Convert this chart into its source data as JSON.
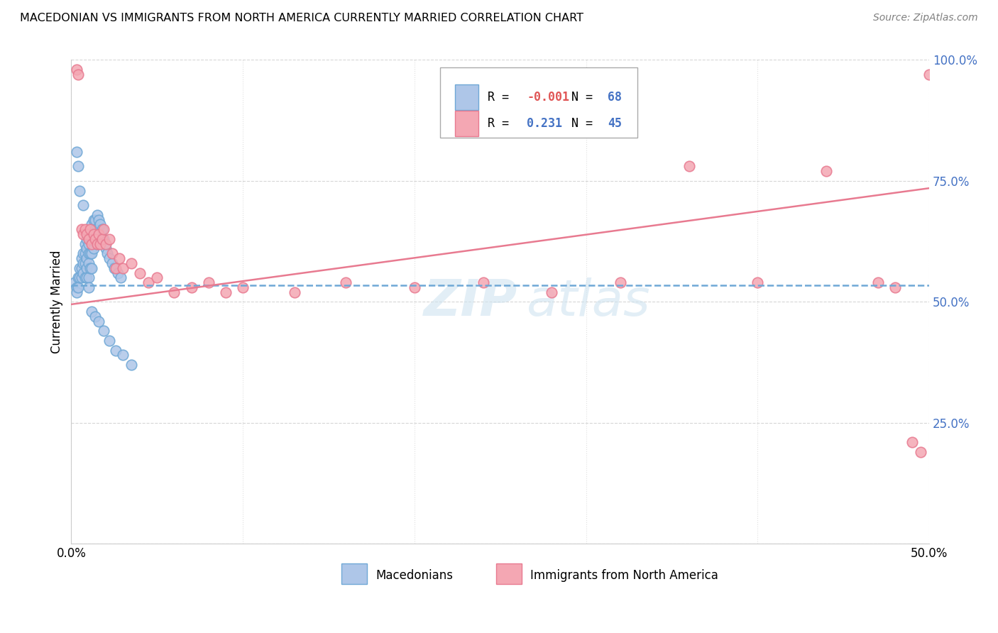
{
  "title": "MACEDONIAN VS IMMIGRANTS FROM NORTH AMERICA CURRENTLY MARRIED CORRELATION CHART",
  "source": "Source: ZipAtlas.com",
  "ylabel": "Currently Married",
  "xlim": [
    0.0,
    0.5
  ],
  "ylim": [
    0.0,
    1.0
  ],
  "ytick_labels": [
    "",
    "25.0%",
    "50.0%",
    "75.0%",
    "100.0%"
  ],
  "ytick_values": [
    0.0,
    0.25,
    0.5,
    0.75,
    1.0
  ],
  "xtick_labels": [
    "0.0%",
    "",
    "",
    "",
    "",
    "50.0%"
  ],
  "xtick_values": [
    0.0,
    0.1,
    0.2,
    0.3,
    0.4,
    0.5
  ],
  "macedonian_color": "#aec6e8",
  "immigrant_color": "#f4a7b3",
  "macedonian_edge": "#6fa8d6",
  "immigrant_edge": "#e87a90",
  "trend_blue": "#6fa8d6",
  "trend_pink": "#e87a90",
  "watermark_zip": "ZIP",
  "watermark_atlas": "atlas",
  "legend_R_mac": "-0.001",
  "legend_N_mac": "68",
  "legend_R_imm": "0.231",
  "legend_N_imm": "45",
  "mac_x": [
    0.002,
    0.003,
    0.003,
    0.004,
    0.004,
    0.005,
    0.005,
    0.006,
    0.006,
    0.006,
    0.007,
    0.007,
    0.007,
    0.008,
    0.008,
    0.008,
    0.008,
    0.009,
    0.009,
    0.009,
    0.009,
    0.009,
    0.01,
    0.01,
    0.01,
    0.01,
    0.01,
    0.011,
    0.011,
    0.011,
    0.011,
    0.012,
    0.012,
    0.012,
    0.012,
    0.013,
    0.013,
    0.013,
    0.014,
    0.014,
    0.015,
    0.015,
    0.015,
    0.016,
    0.016,
    0.017,
    0.018,
    0.019,
    0.02,
    0.021,
    0.022,
    0.024,
    0.025,
    0.027,
    0.029,
    0.003,
    0.004,
    0.005,
    0.007,
    0.01,
    0.012,
    0.014,
    0.016,
    0.019,
    0.022,
    0.026,
    0.03,
    0.035
  ],
  "mac_y": [
    0.54,
    0.53,
    0.52,
    0.55,
    0.53,
    0.57,
    0.55,
    0.59,
    0.57,
    0.55,
    0.6,
    0.58,
    0.56,
    0.62,
    0.6,
    0.58,
    0.55,
    0.63,
    0.61,
    0.59,
    0.57,
    0.55,
    0.64,
    0.62,
    0.6,
    0.58,
    0.55,
    0.65,
    0.63,
    0.6,
    0.57,
    0.66,
    0.63,
    0.6,
    0.57,
    0.67,
    0.64,
    0.61,
    0.67,
    0.65,
    0.68,
    0.65,
    0.62,
    0.67,
    0.64,
    0.66,
    0.65,
    0.63,
    0.61,
    0.6,
    0.59,
    0.58,
    0.57,
    0.56,
    0.55,
    0.81,
    0.78,
    0.73,
    0.7,
    0.53,
    0.48,
    0.47,
    0.46,
    0.44,
    0.42,
    0.4,
    0.39,
    0.37
  ],
  "imm_x": [
    0.003,
    0.004,
    0.006,
    0.007,
    0.008,
    0.009,
    0.01,
    0.011,
    0.012,
    0.013,
    0.014,
    0.015,
    0.016,
    0.017,
    0.018,
    0.019,
    0.02,
    0.022,
    0.024,
    0.026,
    0.028,
    0.03,
    0.035,
    0.04,
    0.045,
    0.05,
    0.06,
    0.07,
    0.08,
    0.09,
    0.1,
    0.13,
    0.16,
    0.2,
    0.24,
    0.28,
    0.32,
    0.36,
    0.4,
    0.44,
    0.47,
    0.48,
    0.49,
    0.495,
    0.5
  ],
  "imm_y": [
    0.98,
    0.97,
    0.65,
    0.64,
    0.65,
    0.64,
    0.63,
    0.65,
    0.62,
    0.64,
    0.63,
    0.62,
    0.64,
    0.62,
    0.63,
    0.65,
    0.62,
    0.63,
    0.6,
    0.57,
    0.59,
    0.57,
    0.58,
    0.56,
    0.54,
    0.55,
    0.52,
    0.53,
    0.54,
    0.52,
    0.53,
    0.52,
    0.54,
    0.53,
    0.54,
    0.52,
    0.54,
    0.78,
    0.54,
    0.77,
    0.54,
    0.53,
    0.21,
    0.19,
    0.97
  ],
  "mac_trend_y0": 0.535,
  "mac_trend_y1": 0.535,
  "imm_trend_y0": 0.495,
  "imm_trend_y1": 0.735
}
